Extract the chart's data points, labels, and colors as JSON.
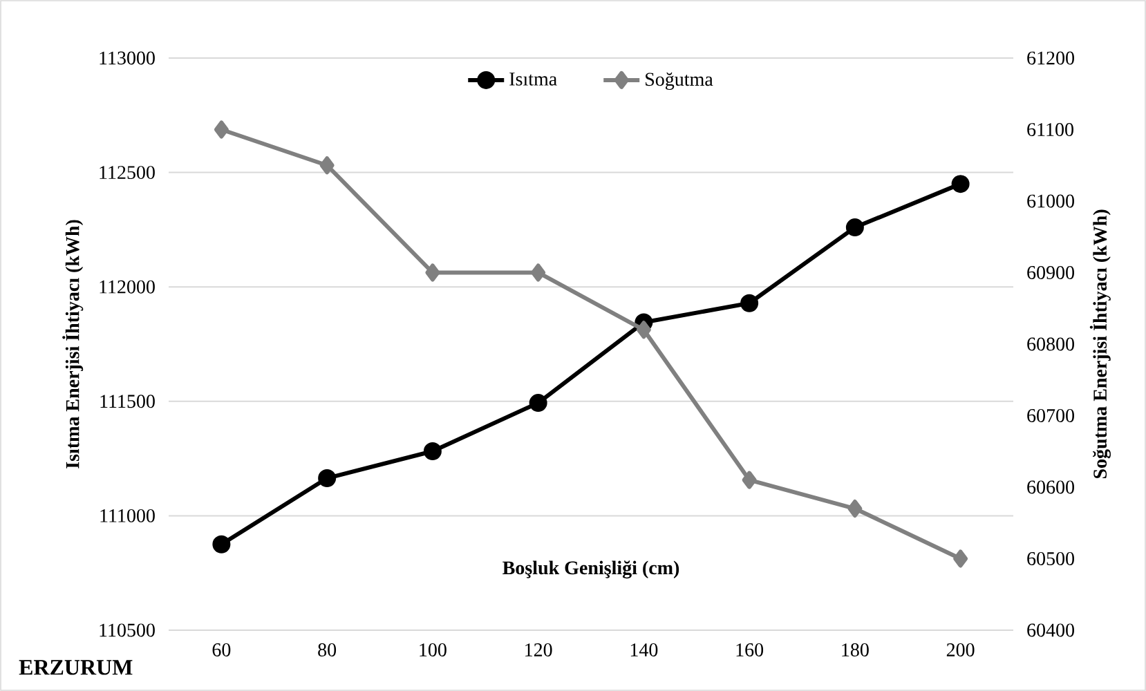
{
  "chart_data": {
    "type": "line",
    "xlabel": "Boşluk Genişliği  (cm)",
    "ylabel": "Isıtma Enerjisi İhtiyacı (kWh)",
    "y2label": "Soğutma Enerjisi İhtiyacı (kWh)",
    "categories": [
      "60",
      "80",
      "100",
      "120",
      "140",
      "160",
      "180",
      "200"
    ],
    "series": [
      {
        "name": "Isıtma",
        "color": "#000000",
        "marker": "circle",
        "values": [
          110875,
          111164,
          111282,
          111493,
          111845,
          111929,
          112260,
          112450
        ]
      },
      {
        "name": "Soğutma",
        "color": "#808080",
        "marker": "diamond",
        "axis": "y2",
        "values": [
          61100,
          61050,
          60900,
          60900,
          60820,
          60610,
          60570,
          60500
        ]
      }
    ],
    "ylim": [
      110500,
      113000
    ],
    "yticks": [
      110500,
      111000,
      111500,
      112000,
      112500,
      113000
    ],
    "y2lim": [
      60400,
      61200
    ],
    "y2ticks": [
      60400,
      60500,
      60600,
      60700,
      60800,
      60900,
      61000,
      61100,
      61200
    ],
    "grid": "y",
    "legend": "top",
    "annotations": [
      "ERZURUM"
    ]
  }
}
